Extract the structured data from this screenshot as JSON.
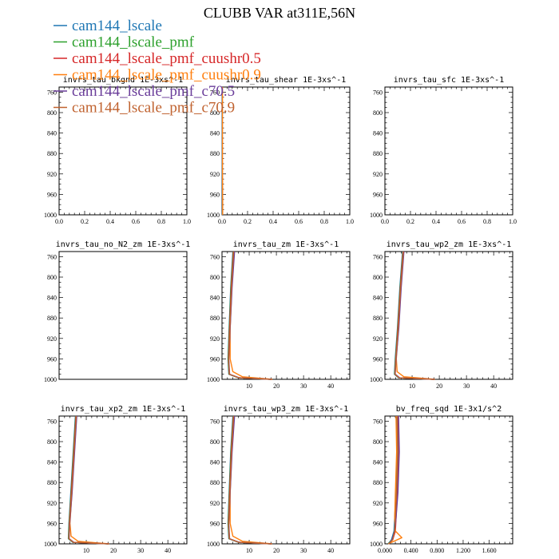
{
  "title": "CLUBB VAR at311E,56N",
  "colors": {
    "cam144_lscale": "#1f77b4",
    "cam144_lscale_pmf": "#2ca02c",
    "cam144_lscale_pmf_cuushr0.5": "#d62728",
    "cam144_lscale_pmf_cuushr0.9": "#ff7f0e",
    "cam144_lscale_pmf_c70.5": "#6a3d9a",
    "cam144_lscale_pmf_c70.9": "#c0622f"
  },
  "legend": [
    {
      "key": "cam144_lscale",
      "label": "cam144_lscale"
    },
    {
      "key": "cam144_lscale_pmf",
      "label": "cam144_lscale_pmf"
    },
    {
      "key": "cam144_lscale_pmf_cuushr0.5",
      "label": "cam144_lscale_pmf_cuushr0.5"
    },
    {
      "key": "cam144_lscale_pmf_cuushr0.9",
      "label": "cam144_lscale_pmf_cuushr0.9"
    },
    {
      "key": "cam144_lscale_pmf_c70.5",
      "label": "cam144_lscale_pmf_c70.5"
    },
    {
      "key": "cam144_lscale_pmf_c70.9",
      "label": "cam144_lscale_pmf_c70.9"
    }
  ],
  "chart_data": [
    {
      "type": "line",
      "title": "invrs_tau_bkgnd   1E-3xs^-1",
      "xlim": [
        0,
        1
      ],
      "xticks": [
        0.0,
        0.2,
        0.4,
        0.6,
        0.8,
        1.0
      ],
      "xtick_labels": [
        "0.0",
        "0.2",
        "0.4",
        "0.6",
        "0.8",
        "1.0"
      ],
      "ylim": [
        750,
        1000
      ],
      "yticks": [
        760,
        800,
        840,
        880,
        920,
        960,
        1000
      ],
      "ytick_labels": [
        "760",
        "800",
        "840",
        "880",
        "920",
        "960",
        "1000"
      ],
      "series": []
    },
    {
      "type": "line",
      "title": "invrs_tau_shear   1E-3xs^-1",
      "xlim": [
        0,
        1
      ],
      "xticks": [
        0.0,
        0.2,
        0.4,
        0.6,
        0.8,
        1.0
      ],
      "xtick_labels": [
        "0.0",
        "0.2",
        "0.4",
        "0.6",
        "0.8",
        "1.0"
      ],
      "ylim": [
        750,
        1000
      ],
      "yticks": [
        760,
        800,
        840,
        880,
        920,
        960,
        1000
      ],
      "ytick_labels": [
        "760",
        "800",
        "840",
        "880",
        "920",
        "960",
        "1000"
      ],
      "series": [
        {
          "key": "cam144_lscale",
          "x": [
            0.002,
            0.002,
            0.003,
            0.003
          ],
          "y": [
            750,
            900,
            980,
            1000
          ]
        },
        {
          "key": "cam144_lscale_pmf_cuushr0.9",
          "x": [
            0.004,
            0.004,
            0.005,
            0.005
          ],
          "y": [
            750,
            900,
            980,
            1000
          ]
        }
      ]
    },
    {
      "type": "line",
      "title": "invrs_tau_sfc   1E-3xs^-1",
      "xlim": [
        0,
        1
      ],
      "xticks": [
        0.0,
        0.2,
        0.4,
        0.6,
        0.8,
        1.0
      ],
      "xtick_labels": [
        "0.0",
        "0.2",
        "0.4",
        "0.6",
        "0.8",
        "1.0"
      ],
      "ylim": [
        750,
        1000
      ],
      "yticks": [
        760,
        800,
        840,
        880,
        920,
        960,
        1000
      ],
      "ytick_labels": [
        "760",
        "800",
        "840",
        "880",
        "920",
        "960",
        "1000"
      ],
      "series": []
    },
    {
      "type": "line",
      "title": "invrs_tau_no_N2_zm   1E-3xs^-1",
      "xlim": [
        0,
        1
      ],
      "xticks": [],
      "xtick_labels": [],
      "ylim": [
        750,
        1000
      ],
      "yticks": [
        760,
        800,
        840,
        880,
        920,
        960,
        1000
      ],
      "ytick_labels": [
        "760",
        "800",
        "840",
        "880",
        "920",
        "960",
        "1000"
      ],
      "series": []
    },
    {
      "type": "line",
      "title": "invrs_tau_zm   1E-3xs^-1",
      "xlim": [
        0,
        47
      ],
      "xticks": [
        10,
        20,
        30,
        40
      ],
      "xtick_labels": [
        "10",
        "20",
        "30",
        "40"
      ],
      "ylim": [
        750,
        1000
      ],
      "yticks": [
        760,
        800,
        840,
        880,
        920,
        960,
        1000
      ],
      "ytick_labels": [
        "760",
        "800",
        "840",
        "880",
        "920",
        "960",
        "1000"
      ],
      "series": [
        {
          "key": "cam144_lscale",
          "x": [
            4.0,
            3.2,
            2.6,
            2.2,
            2.5,
            6.0,
            18.0
          ],
          "y": [
            750,
            820,
            900,
            960,
            990,
            997,
            1000
          ]
        },
        {
          "key": "cam144_lscale_pmf",
          "x": [
            4.1,
            3.3,
            2.7,
            2.3,
            2.6,
            6.1,
            18.2
          ],
          "y": [
            750,
            820,
            900,
            960,
            990,
            997,
            1000
          ]
        },
        {
          "key": "cam144_lscale_pmf_cuushr0.5",
          "x": [
            4.2,
            3.4,
            2.8,
            2.4,
            2.7,
            6.3,
            18.3
          ],
          "y": [
            750,
            820,
            900,
            960,
            990,
            997,
            1000
          ]
        },
        {
          "key": "cam144_lscale_pmf_cuushr0.9",
          "x": [
            4.4,
            3.6,
            3.0,
            3.0,
            4.0,
            7.5,
            18.5
          ],
          "y": [
            750,
            820,
            900,
            960,
            985,
            995,
            1000
          ]
        },
        {
          "key": "cam144_lscale_pmf_c70.5",
          "x": [
            4.6,
            3.7,
            3.0,
            2.5,
            2.8,
            6.4,
            18.3
          ],
          "y": [
            750,
            820,
            900,
            960,
            990,
            997,
            1000
          ]
        },
        {
          "key": "cam144_lscale_pmf_c70.9",
          "x": [
            4.3,
            3.5,
            2.9,
            2.4,
            2.7,
            6.2,
            18.4
          ],
          "y": [
            750,
            820,
            900,
            960,
            990,
            997,
            1000
          ]
        }
      ]
    },
    {
      "type": "line",
      "title": "invrs_tau_wp2_zm   1E-3xs^-1",
      "xlim": [
        0,
        47
      ],
      "xticks": [
        10,
        20,
        30,
        40
      ],
      "xtick_labels": [
        "10",
        "20",
        "30",
        "40"
      ],
      "ylim": [
        750,
        1000
      ],
      "yticks": [
        760,
        800,
        840,
        880,
        920,
        960,
        1000
      ],
      "ytick_labels": [
        "760",
        "800",
        "840",
        "880",
        "920",
        "960",
        "1000"
      ],
      "series": [
        {
          "key": "cam144_lscale",
          "x": [
            6.5,
            5.5,
            4.6,
            3.8,
            3.5,
            5.0,
            18.0
          ],
          "y": [
            750,
            820,
            900,
            960,
            990,
            997,
            1000
          ]
        },
        {
          "key": "cam144_lscale_pmf",
          "x": [
            6.6,
            5.6,
            4.7,
            3.9,
            3.6,
            5.1,
            18.1
          ],
          "y": [
            750,
            820,
            900,
            960,
            990,
            997,
            1000
          ]
        },
        {
          "key": "cam144_lscale_pmf_cuushr0.5",
          "x": [
            6.7,
            5.7,
            4.8,
            4.0,
            3.7,
            5.3,
            18.2
          ],
          "y": [
            750,
            820,
            900,
            960,
            990,
            997,
            1000
          ]
        },
        {
          "key": "cam144_lscale_pmf_cuushr0.9",
          "x": [
            6.9,
            5.9,
            5.0,
            4.2,
            4.5,
            7.0,
            18.3
          ],
          "y": [
            750,
            820,
            900,
            960,
            985,
            995,
            1000
          ]
        },
        {
          "key": "cam144_lscale_pmf_c70.5",
          "x": [
            7.0,
            6.0,
            5.1,
            4.1,
            3.8,
            5.4,
            18.2
          ],
          "y": [
            750,
            820,
            900,
            960,
            990,
            997,
            1000
          ]
        },
        {
          "key": "cam144_lscale_pmf_c70.9",
          "x": [
            6.8,
            5.8,
            4.9,
            4.0,
            3.7,
            5.2,
            18.3
          ],
          "y": [
            750,
            820,
            900,
            960,
            990,
            997,
            1000
          ]
        }
      ]
    },
    {
      "type": "line",
      "title": "invrs_tau_xp2_zm   1E-3xs^-1",
      "xlim": [
        0,
        47
      ],
      "xticks": [
        10,
        20,
        30,
        40
      ],
      "xtick_labels": [
        "10",
        "20",
        "30",
        "40"
      ],
      "ylim": [
        750,
        1000
      ],
      "yticks": [
        760,
        800,
        840,
        880,
        920,
        960,
        1000
      ],
      "ytick_labels": [
        "760",
        "800",
        "840",
        "880",
        "920",
        "960",
        "1000"
      ],
      "series": [
        {
          "key": "cam144_lscale",
          "x": [
            6.0,
            5.2,
            4.3,
            3.6,
            3.4,
            5.0,
            18.0
          ],
          "y": [
            750,
            820,
            900,
            960,
            990,
            997,
            1000
          ]
        },
        {
          "key": "cam144_lscale_pmf",
          "x": [
            6.1,
            5.3,
            4.4,
            3.7,
            3.5,
            5.1,
            18.1
          ],
          "y": [
            750,
            820,
            900,
            960,
            990,
            997,
            1000
          ]
        },
        {
          "key": "cam144_lscale_pmf_cuushr0.5",
          "x": [
            6.2,
            5.4,
            4.5,
            3.8,
            3.6,
            5.3,
            18.2
          ],
          "y": [
            750,
            820,
            900,
            960,
            990,
            997,
            1000
          ]
        },
        {
          "key": "cam144_lscale_pmf_cuushr0.9",
          "x": [
            6.4,
            5.6,
            4.7,
            4.0,
            4.4,
            7.0,
            18.4
          ],
          "y": [
            750,
            820,
            900,
            960,
            985,
            995,
            1000
          ]
        },
        {
          "key": "cam144_lscale_pmf_c70.5",
          "x": [
            6.5,
            5.7,
            4.8,
            3.9,
            3.7,
            5.4,
            18.2
          ],
          "y": [
            750,
            820,
            900,
            960,
            990,
            997,
            1000
          ]
        },
        {
          "key": "cam144_lscale_pmf_c70.9",
          "x": [
            6.3,
            5.5,
            4.6,
            3.8,
            3.6,
            5.2,
            18.3
          ],
          "y": [
            750,
            820,
            900,
            960,
            990,
            997,
            1000
          ]
        }
      ]
    },
    {
      "type": "line",
      "title": "invrs_tau_wp3_zm   1E-3xs^-1",
      "xlim": [
        0,
        47
      ],
      "xticks": [
        10,
        20,
        30,
        40
      ],
      "xtick_labels": [
        "10",
        "20",
        "30",
        "40"
      ],
      "ylim": [
        750,
        1000
      ],
      "yticks": [
        760,
        800,
        840,
        880,
        920,
        960,
        1000
      ],
      "ytick_labels": [
        "760",
        "800",
        "840",
        "880",
        "920",
        "960",
        "1000"
      ],
      "series": [
        {
          "key": "cam144_lscale",
          "x": [
            4.0,
            3.2,
            2.6,
            2.2,
            2.5,
            6.0,
            18.0
          ],
          "y": [
            750,
            820,
            900,
            960,
            990,
            997,
            1000
          ]
        },
        {
          "key": "cam144_lscale_pmf",
          "x": [
            4.1,
            3.3,
            2.7,
            2.3,
            2.6,
            6.1,
            18.1
          ],
          "y": [
            750,
            820,
            900,
            960,
            990,
            997,
            1000
          ]
        },
        {
          "key": "cam144_lscale_pmf_cuushr0.5",
          "x": [
            4.2,
            3.4,
            2.8,
            2.4,
            2.7,
            6.3,
            18.2
          ],
          "y": [
            750,
            820,
            900,
            960,
            990,
            997,
            1000
          ]
        },
        {
          "key": "cam144_lscale_pmf_cuushr0.9",
          "x": [
            4.4,
            3.6,
            3.0,
            3.0,
            4.0,
            7.5,
            18.4
          ],
          "y": [
            750,
            820,
            900,
            960,
            985,
            995,
            1000
          ]
        },
        {
          "key": "cam144_lscale_pmf_c70.5",
          "x": [
            4.6,
            3.7,
            3.0,
            2.5,
            2.8,
            6.4,
            18.2
          ],
          "y": [
            750,
            820,
            900,
            960,
            990,
            997,
            1000
          ]
        },
        {
          "key": "cam144_lscale_pmf_c70.9",
          "x": [
            4.3,
            3.5,
            2.9,
            2.4,
            2.7,
            6.2,
            18.3
          ],
          "y": [
            750,
            820,
            900,
            960,
            990,
            997,
            1000
          ]
        }
      ]
    },
    {
      "type": "line",
      "title": "bv_freq_sqd   1E-3x1/s^2",
      "xlim": [
        0,
        1.96
      ],
      "xticks": [
        0.0,
        0.4,
        0.8,
        1.2,
        1.6
      ],
      "xtick_labels": [
        "0.000",
        "0.400",
        "0.800",
        "1.200",
        "1.600"
      ],
      "ylim": [
        750,
        1000
      ],
      "yticks": [
        760,
        800,
        840,
        880,
        920,
        960,
        1000
      ],
      "ytick_labels": [
        "760",
        "800",
        "840",
        "880",
        "920",
        "960",
        "1000"
      ],
      "series": [
        {
          "key": "cam144_lscale",
          "x": [
            0.18,
            0.19,
            0.17,
            0.15,
            0.14,
            0.1,
            0.05
          ],
          "y": [
            750,
            820,
            900,
            950,
            975,
            992,
            1000
          ]
        },
        {
          "key": "cam144_lscale_pmf",
          "x": [
            0.19,
            0.2,
            0.18,
            0.16,
            0.15,
            0.11,
            0.05
          ],
          "y": [
            750,
            820,
            900,
            950,
            975,
            992,
            1000
          ]
        },
        {
          "key": "cam144_lscale_pmf_cuushr0.5",
          "x": [
            0.2,
            0.21,
            0.19,
            0.17,
            0.16,
            0.12,
            0.06
          ],
          "y": [
            750,
            820,
            900,
            950,
            975,
            992,
            1000
          ]
        },
        {
          "key": "cam144_lscale_pmf_cuushr0.9",
          "x": [
            0.17,
            0.18,
            0.16,
            0.15,
            0.16,
            0.26,
            0.05
          ],
          "y": [
            750,
            820,
            900,
            950,
            975,
            988,
            1000
          ]
        },
        {
          "key": "cam144_lscale_pmf_c70.5",
          "x": [
            0.21,
            0.22,
            0.2,
            0.17,
            0.15,
            0.11,
            0.06
          ],
          "y": [
            750,
            820,
            900,
            950,
            975,
            992,
            1000
          ]
        },
        {
          "key": "cam144_lscale_pmf_c70.9",
          "x": [
            0.19,
            0.2,
            0.18,
            0.16,
            0.15,
            0.12,
            0.06
          ],
          "y": [
            750,
            820,
            900,
            950,
            975,
            992,
            1000
          ]
        }
      ]
    }
  ]
}
